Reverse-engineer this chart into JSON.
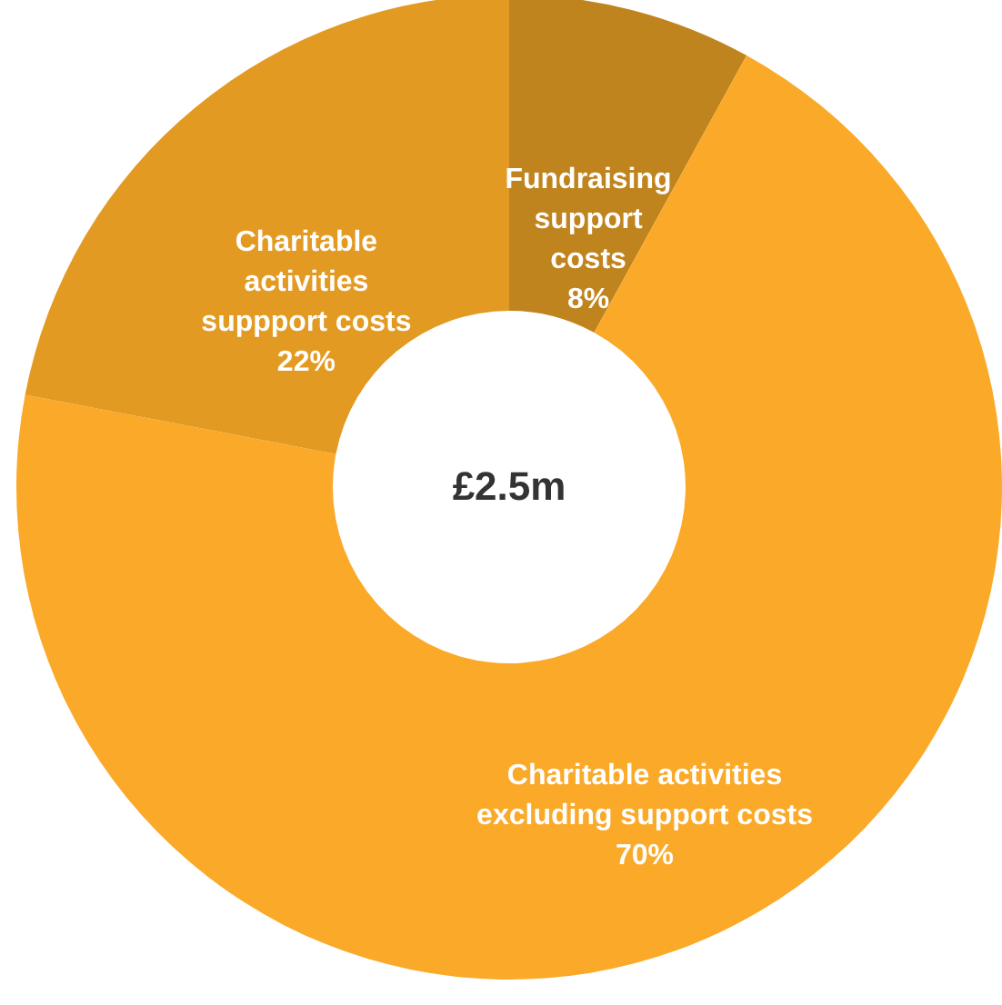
{
  "chart_data": {
    "type": "donut",
    "categories": [
      "Fundraising support costs",
      "Charitable activities excluding support costs",
      "Charitable activities suppport costs"
    ],
    "values": [
      8,
      70,
      22
    ],
    "colors": [
      "#c0841e",
      "#fba928",
      "#e39a22"
    ],
    "value_labels": [
      "8%",
      "70%",
      "22%"
    ],
    "annotations": [
      "£2.5m"
    ]
  }
}
